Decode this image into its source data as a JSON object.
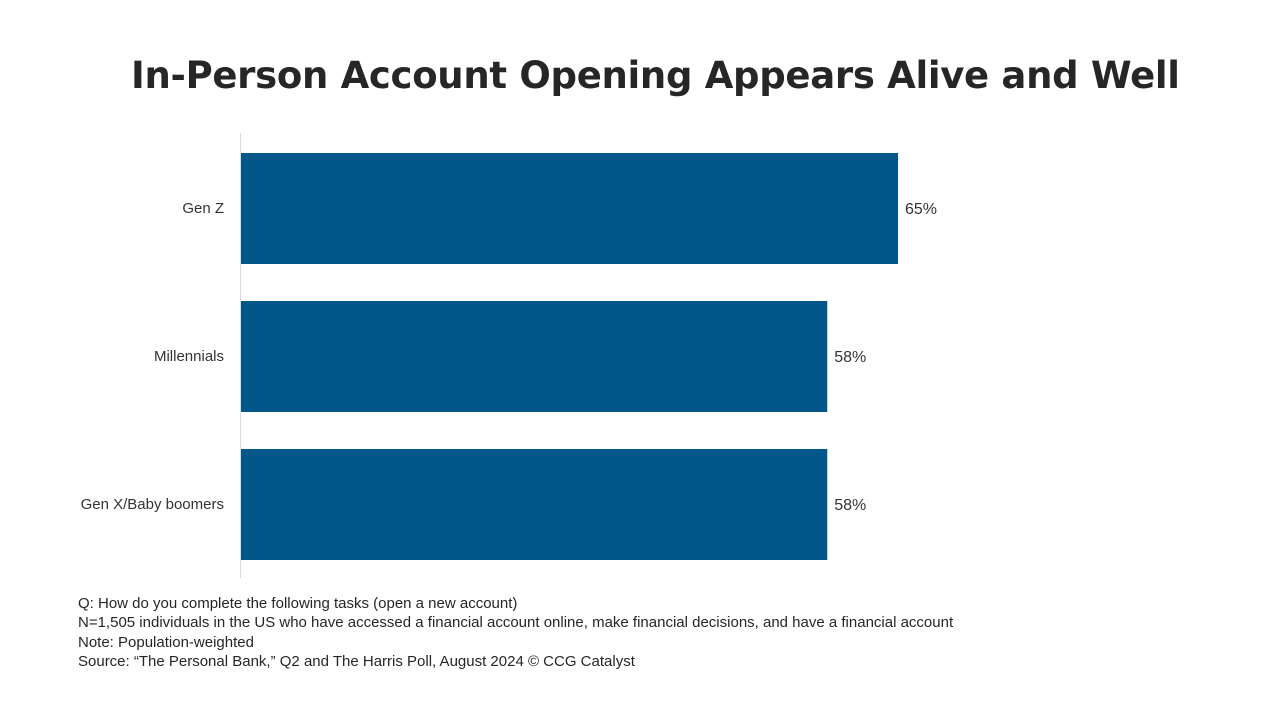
{
  "chart_data": {
    "type": "bar",
    "orientation": "horizontal",
    "title": "In-Person Account Opening Appears Alive and Well",
    "categories": [
      "Gen Z",
      "Millennials",
      "Gen X/Baby boomers"
    ],
    "values": [
      65,
      58,
      58
    ],
    "value_labels": [
      "65%",
      "58%",
      "58%"
    ],
    "xlim": [
      0,
      100
    ],
    "grid": false,
    "legend": "none",
    "bar_color": "#02578A"
  },
  "footnotes": {
    "question": "Q: How do you complete the following tasks (open a new account)",
    "sample": "N=1,505 individuals in the US who have accessed a financial account online, make financial decisions, and have a financial account",
    "note": "Note: Population-weighted",
    "source": "Source: “The Personal Bank,” Q2 and The Harris Poll, August 2024 © CCG Catalyst"
  }
}
